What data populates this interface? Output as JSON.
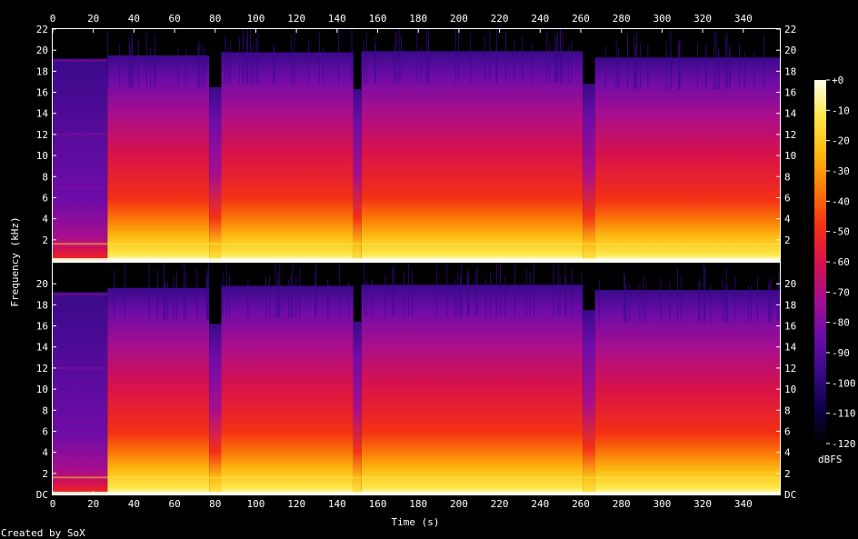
{
  "chart_data": {
    "type": "heatmap",
    "subtype": "spectrogram",
    "credit": "Created by SoX",
    "xlabel": "Time (s)",
    "ylabel": "Frequency (kHz)",
    "xlim": [
      0,
      358
    ],
    "x_ticks": [
      "0",
      "20",
      "40",
      "60",
      "80",
      "100",
      "120",
      "140",
      "160",
      "180",
      "200",
      "220",
      "240",
      "260",
      "280",
      "300",
      "320",
      "340"
    ],
    "channels": [
      {
        "ylim": [
          0,
          22
        ],
        "y_ticks_left": [
          "22",
          "20",
          "18",
          "16",
          "14",
          "12",
          "10",
          "8",
          "6",
          "4",
          "2"
        ],
        "y_ticks_right": [
          "22",
          "20",
          "18",
          "16",
          "14",
          "12",
          "10",
          "8",
          "6",
          "4",
          "2"
        ]
      },
      {
        "ylim": [
          0,
          22
        ],
        "y_ticks_left": [
          "20",
          "18",
          "16",
          "14",
          "12",
          "10",
          "8",
          "6",
          "4",
          "2",
          "DC"
        ],
        "y_ticks_right": [
          "20",
          "18",
          "16",
          "14",
          "12",
          "10",
          "8",
          "6",
          "4",
          "2",
          "DC"
        ]
      }
    ],
    "colorbar": {
      "label": "dBFS",
      "range": [
        -120,
        0
      ],
      "ticks": [
        "+0",
        "-10",
        "-20",
        "-30",
        "-40",
        "-50",
        "-60",
        "-70",
        "-80",
        "-90",
        "-100",
        "-110",
        "-120"
      ],
      "colors": [
        "#000000",
        "#12004a",
        "#3a0a8a",
        "#6e0ca8",
        "#a60e8e",
        "#d8124a",
        "#f43014",
        "#fb7a08",
        "#fdba12",
        "#fde84a",
        "#fffde8"
      ]
    },
    "segments": [
      {
        "start": 0,
        "end": 27,
        "level": "quiet",
        "ch1_top_khz": 19.2,
        "ch2_top_khz": 19.2
      },
      {
        "start": 27,
        "end": 77,
        "level": "loud",
        "ch1_top_khz": 19.5,
        "ch2_top_khz": 19.6
      },
      {
        "start": 77,
        "end": 83,
        "level": "dip",
        "ch1_top_khz": 16.5,
        "ch2_top_khz": 16.2
      },
      {
        "start": 83,
        "end": 148,
        "level": "loud",
        "ch1_top_khz": 19.8,
        "ch2_top_khz": 19.8
      },
      {
        "start": 148,
        "end": 152,
        "level": "dip",
        "ch1_top_khz": 16.3,
        "ch2_top_khz": 16.4
      },
      {
        "start": 152,
        "end": 261,
        "level": "loud",
        "ch1_top_khz": 19.9,
        "ch2_top_khz": 19.9
      },
      {
        "start": 261,
        "end": 267,
        "level": "dip",
        "ch1_top_khz": 16.8,
        "ch2_top_khz": 17.5
      },
      {
        "start": 267,
        "end": 358,
        "level": "loud",
        "ch1_top_khz": 19.3,
        "ch2_top_khz": 19.4
      }
    ]
  }
}
